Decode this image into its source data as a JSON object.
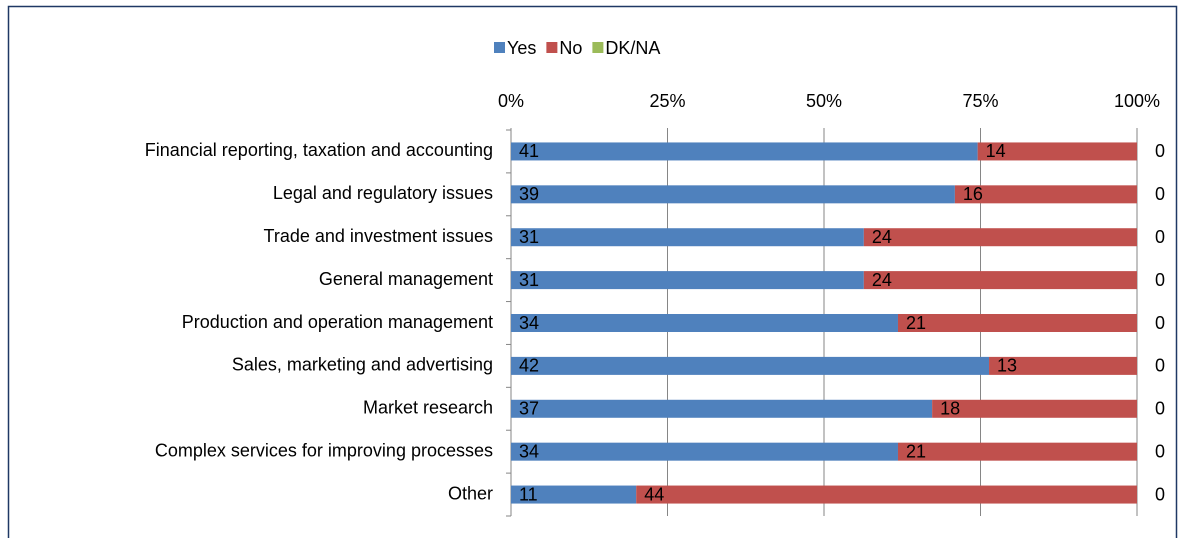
{
  "chart_data": {
    "type": "bar",
    "orientation": "horizontal",
    "stacking": "percent",
    "categories": [
      "Financial reporting, taxation and accounting",
      "Legal and regulatory issues",
      "Trade and investment issues",
      "General management",
      "Production and operation management",
      "Sales, marketing and advertising",
      "Market research",
      "Complex services for improving processes",
      "Other"
    ],
    "series": [
      {
        "name": "Yes",
        "color": "#4f81bd",
        "values": [
          41,
          39,
          31,
          31,
          34,
          42,
          37,
          34,
          11
        ]
      },
      {
        "name": "No",
        "color": "#c0504d",
        "values": [
          14,
          16,
          24,
          24,
          21,
          13,
          18,
          21,
          44
        ]
      },
      {
        "name": "DK/NA",
        "color": "#9bbb59",
        "values": [
          0,
          0,
          0,
          0,
          0,
          0,
          0,
          0,
          0
        ]
      }
    ],
    "xlim": [
      0,
      100
    ],
    "xticks": [
      {
        "value": 0,
        "label": "0%"
      },
      {
        "value": 25,
        "label": "25%"
      },
      {
        "value": 50,
        "label": "50%"
      },
      {
        "value": 75,
        "label": "75%"
      },
      {
        "value": 100,
        "label": "100%"
      }
    ],
    "grid": true,
    "legend": "top"
  }
}
